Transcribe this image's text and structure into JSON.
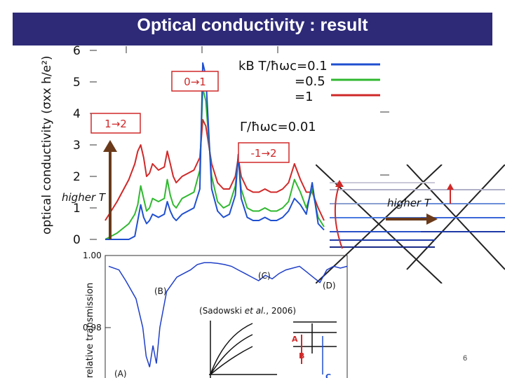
{
  "slide": {
    "title": "Optical conductivity : result",
    "page_number": "6",
    "labels": {
      "higher_t_left": "higher T",
      "higher_t_right": "higher T",
      "citation_name": "Sadowski",
      "citation_etal": "et al.",
      "citation_year": "2006",
      "marker_A": "A",
      "marker_B": "B",
      "marker_C": "C"
    }
  },
  "chart_data": [
    {
      "type": "line",
      "ylabel": "optical conductivity (σxx h/e²)",
      "yticks": [
        "0",
        "1",
        "2",
        "3",
        "4",
        "5",
        "6"
      ],
      "ylim": [
        0,
        6
      ],
      "legend": {
        "placement": "top-right",
        "line1": "kB T/ħωc=0.1",
        "line2": "=0.5",
        "line3": "=1",
        "gamma": "Γ/ħωc=0.01"
      },
      "annotations": [
        "0→1",
        "1→2",
        "-1→2"
      ],
      "colors": {
        "T0.1": "#1f4fd0",
        "T0.5": "#2fb82f",
        "T1": "#d02828"
      },
      "series": [
        {
          "name": "kBT/ħωc=0.1",
          "x": [
            0,
            0.4,
            0.8,
            1,
            1.1,
            1.2,
            1.3,
            1.4,
            1.5,
            1.6,
            1.8,
            2,
            2.1,
            2.2,
            2.3,
            2.4,
            2.6,
            2.8,
            3,
            3.2,
            3.3,
            3.4,
            3.6,
            3.8,
            4,
            4.2,
            4.4,
            4.5,
            4.6,
            4.8,
            5,
            5.2,
            5.4,
            5.6,
            5.8,
            6,
            6.2,
            6.4,
            6.6,
            6.8,
            7,
            7.2,
            7.4
          ],
          "y": [
            0,
            0,
            0,
            0.1,
            0.6,
            1.1,
            0.7,
            0.5,
            0.6,
            0.8,
            0.7,
            0.8,
            1.2,
            0.9,
            0.7,
            0.6,
            0.8,
            0.9,
            1,
            1.6,
            5.6,
            5.2,
            1.6,
            0.9,
            0.7,
            0.8,
            1.4,
            2.7,
            1.3,
            0.7,
            0.6,
            0.6,
            0.7,
            0.6,
            0.6,
            0.7,
            0.9,
            1.3,
            1.1,
            0.8,
            1.8,
            0.5,
            0.3
          ]
        },
        {
          "name": "kBT/ħωc=0.5",
          "x": [
            0,
            0.4,
            0.8,
            1,
            1.1,
            1.2,
            1.3,
            1.4,
            1.5,
            1.6,
            1.8,
            2,
            2.1,
            2.2,
            2.3,
            2.4,
            2.6,
            2.8,
            3,
            3.2,
            3.3,
            3.4,
            3.6,
            3.8,
            4,
            4.2,
            4.4,
            4.5,
            4.6,
            4.8,
            5,
            5.2,
            5.4,
            5.6,
            5.8,
            6,
            6.2,
            6.4,
            6.6,
            6.8,
            7,
            7.2,
            7.4
          ],
          "y": [
            0,
            0.2,
            0.5,
            0.8,
            1.1,
            1.7,
            1.3,
            0.9,
            1.0,
            1.3,
            1.2,
            1.3,
            1.9,
            1.4,
            1.1,
            1.0,
            1.3,
            1.4,
            1.5,
            2.2,
            4.8,
            4.4,
            2.0,
            1.2,
            1.0,
            1.1,
            1.7,
            2.6,
            1.6,
            1.0,
            0.9,
            0.9,
            1.0,
            0.9,
            0.9,
            1.0,
            1.2,
            1.9,
            1.5,
            1.0,
            1.6,
            0.7,
            0.4
          ]
        },
        {
          "name": "kBT/ħωc=1",
          "x": [
            0,
            0.4,
            0.8,
            1,
            1.1,
            1.2,
            1.3,
            1.4,
            1.5,
            1.6,
            1.8,
            2,
            2.1,
            2.2,
            2.3,
            2.4,
            2.6,
            2.8,
            3,
            3.2,
            3.3,
            3.4,
            3.6,
            3.8,
            4,
            4.2,
            4.4,
            4.5,
            4.6,
            4.8,
            5,
            5.2,
            5.4,
            5.6,
            5.8,
            6,
            6.2,
            6.4,
            6.6,
            6.8,
            7,
            7.2,
            7.4
          ],
          "y": [
            0.6,
            1.2,
            1.9,
            2.4,
            2.8,
            3.0,
            2.6,
            2.0,
            2.1,
            2.4,
            2.2,
            2.3,
            2.8,
            2.4,
            2.0,
            1.8,
            2.0,
            2.1,
            2.2,
            2.6,
            3.8,
            3.6,
            2.4,
            1.8,
            1.6,
            1.6,
            2.0,
            2.6,
            2.0,
            1.6,
            1.5,
            1.5,
            1.6,
            1.5,
            1.5,
            1.6,
            1.8,
            2.4,
            1.9,
            1.5,
            1.5,
            1.0,
            0.6
          ]
        }
      ]
    },
    {
      "type": "line",
      "ylabel": "relative transmission",
      "yticks": [
        "1.00",
        "0.98"
      ],
      "ylim": [
        0.965,
        1.0
      ],
      "annotations": [
        "(A)",
        "(B)",
        "(C)",
        "(D)"
      ],
      "series": [
        {
          "name": "transmission",
          "x": [
            0,
            0.3,
            0.5,
            0.8,
            1,
            1.1,
            1.2,
            1.3,
            1.4,
            1.5,
            1.7,
            2,
            2.2,
            2.4,
            2.6,
            2.8,
            3,
            3.2,
            3.4,
            3.6,
            3.8,
            4,
            4.2,
            4.4,
            4.6,
            4.8,
            5,
            5.2,
            5.4,
            5.6,
            5.8,
            6,
            6.2,
            6.4,
            6.6,
            6.8,
            7
          ],
          "y": [
            0.997,
            0.996,
            0.993,
            0.988,
            0.98,
            0.972,
            0.969,
            0.975,
            0.97,
            0.98,
            0.99,
            0.994,
            0.995,
            0.996,
            0.9975,
            0.998,
            0.998,
            0.9978,
            0.9975,
            0.997,
            0.996,
            0.995,
            0.994,
            0.993,
            0.9945,
            0.9935,
            0.995,
            0.996,
            0.9965,
            0.997,
            0.9955,
            0.994,
            0.9925,
            0.996,
            0.997,
            0.9965,
            0.997
          ]
        }
      ]
    }
  ]
}
